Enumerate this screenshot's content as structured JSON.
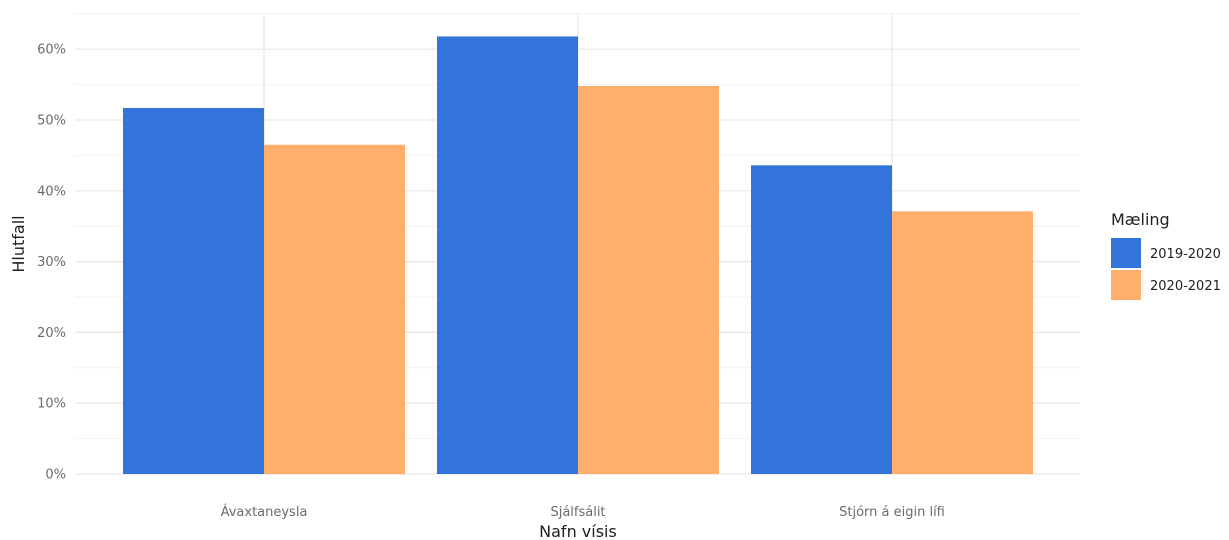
{
  "chart_data": {
    "type": "bar",
    "categories": [
      "Ávaxtaneysla",
      "Sjálfsálit",
      "Stjórn á eigin lífi"
    ],
    "series": [
      {
        "name": "2019-2020",
        "values": [
          0.517,
          0.618,
          0.436
        ],
        "color": "#3374DB"
      },
      {
        "name": "2020-2021",
        "values": [
          0.465,
          0.548,
          0.371
        ],
        "color": "#FFAE6B"
      }
    ],
    "xlabel": "Nafn vísis",
    "ylabel": "Hlutfall",
    "ylim": [
      0,
      0.65
    ],
    "yticks": [
      0,
      0.1,
      0.2,
      0.3,
      0.4,
      0.5,
      0.6
    ],
    "ytick_labels": [
      "0%",
      "10%",
      "20%",
      "30%",
      "40%",
      "50%",
      "60%"
    ],
    "grid": true,
    "legend_title": "Mæling",
    "legend_position": "right"
  }
}
